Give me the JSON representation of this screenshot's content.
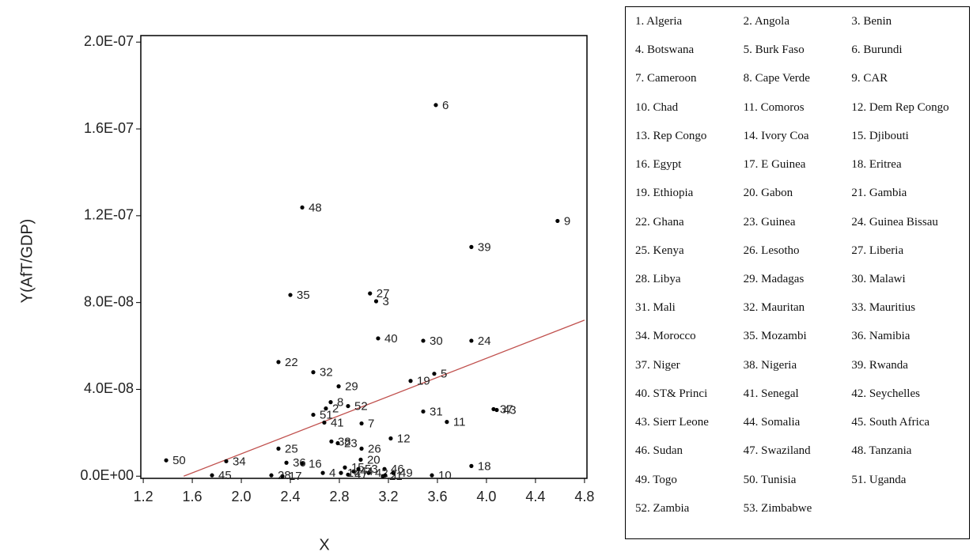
{
  "chart_data": {
    "type": "scatter",
    "title": null,
    "x_label": "X",
    "y_label": "Y(AfT/GDP)",
    "xlim": [
      1.18,
      4.82
    ],
    "ylim": [
      -1e-09,
      2.03e-07
    ],
    "xticks": [
      1.2,
      1.6,
      {
        "value": 2,
        "label": "2.0"
      },
      2.4,
      2.8,
      3.2,
      3.6,
      {
        "value": 4,
        "label": "4.0"
      },
      4.4,
      4.8
    ],
    "yticks": [
      {
        "value": 0,
        "label": "0.0E+00"
      },
      {
        "value": 4e-08,
        "label": "4.0E-08"
      },
      {
        "value": 8e-08,
        "label": "8.0E-08"
      },
      {
        "value": 1.2e-07,
        "label": "1.2E-07"
      },
      {
        "value": 1.6e-07,
        "label": "1.6E-07"
      },
      {
        "value": 2e-07,
        "label": "2.0E-07"
      }
    ],
    "color": "#000000",
    "point_labels": [
      "6",
      "48",
      "9",
      "39",
      "35",
      "27",
      "3",
      "40",
      "30",
      "24",
      "22",
      "32",
      "5",
      "19",
      "29",
      "8",
      "2",
      "52",
      "37",
      "43",
      "31",
      "51",
      "41",
      "7",
      "11",
      "12",
      "38",
      "23",
      "26",
      "25",
      "20",
      "36",
      "16",
      "34",
      "50",
      "18",
      "45",
      "10",
      "17",
      "28",
      "4",
      "46",
      "21",
      "44",
      "14",
      "42",
      "49",
      "47",
      "15",
      "53",
      "1"
    ],
    "x": [
      3.587,
      2.497,
      4.58,
      3.877,
      2.4,
      3.05,
      3.1,
      3.116,
      3.484,
      3.877,
      2.303,
      2.587,
      3.574,
      3.381,
      2.794,
      2.729,
      2.69,
      2.871,
      4.058,
      4.084,
      3.484,
      2.587,
      2.677,
      2.981,
      3.677,
      3.219,
      2.735,
      2.787,
      2.981,
      2.303,
      2.974,
      2.368,
      2.497,
      1.877,
      1.387,
      3.877,
      1.761,
      3.555,
      2.335,
      2.245,
      2.665,
      3.168,
      3.155,
      2.916,
      2.813,
      3.039,
      3.239,
      2.871,
      2.845,
      2.955,
      3.174
    ],
    "y": [
      1.71e-07,
      1.238e-07,
      1.176e-07,
      1.056e-07,
      8.35e-08,
      8.42e-08,
      8.06e-08,
      6.35e-08,
      6.24e-08,
      6.24e-08,
      5.26e-08,
      4.79e-08,
      4.72e-08,
      4.39e-08,
      4.14e-08,
      3.41e-08,
      3.12e-08,
      3.23e-08,
      3.09e-08,
      3.05e-08,
      2.98e-08,
      2.83e-08,
      2.47e-08,
      2.43e-08,
      2.5e-08,
      1.74e-08,
      1.6e-08,
      1.52e-08,
      1.27e-08,
      1.27e-08,
      7.6e-09,
      6.2e-09,
      5.8e-09,
      6.9e-09,
      7.3e-09,
      4.7e-09,
      4e-10,
      4e-10,
      0,
      4e-10,
      1.5e-09,
      3.3e-09,
      0,
      2.2e-09,
      1.5e-09,
      1.5e-09,
      1.5e-09,
      7e-10,
      4e-09,
      3.3e-09,
      4e-10
    ],
    "trend_line": {
      "color": "#c0504d",
      "x": [
        1.53,
        4.8
      ],
      "y": [
        0,
        7.19e-08
      ]
    }
  },
  "legend_table": {
    "rows": [
      [
        "1. Algeria",
        "2. Angola",
        "3. Benin"
      ],
      [
        "4. Botswana",
        "5. Burk Faso",
        "6. Burundi"
      ],
      [
        "7. Cameroon",
        "8. Cape Verde",
        "9. CAR"
      ],
      [
        "10. Chad",
        "11. Comoros",
        "12. Dem Rep Congo"
      ],
      [
        "13. Rep Congo",
        "14. Ivory Coa",
        "15. Djibouti"
      ],
      [
        "16. Egypt",
        "17. E Guinea",
        "18. Eritrea"
      ],
      [
        "19. Ethiopia",
        "20. Gabon",
        "21. Gambia"
      ],
      [
        "22. Ghana",
        "23. Guinea",
        "24. Guinea Bissau"
      ],
      [
        "25. Kenya",
        "26. Lesotho",
        "27. Liberia"
      ],
      [
        "28. Libya",
        "29. Madagas",
        "30. Malawi"
      ],
      [
        "31. Mali",
        "32. Mauritan",
        "33. Mauritius"
      ],
      [
        "34. Morocco",
        "35. Mozambi",
        "36. Namibia"
      ],
      [
        "37. Niger",
        "38. Nigeria",
        "39. Rwanda"
      ],
      [
        "40. ST& Princi",
        "41. Senegal",
        "42. Seychelles"
      ],
      [
        "43. Sierr Leone",
        "44. Somalia",
        "45. South Africa"
      ],
      [
        "46. Sudan",
        "47. Swaziland",
        "48. Tanzania"
      ],
      [
        "49. Togo",
        "50. Tunisia",
        "51. Uganda"
      ],
      [
        "52. Zambia",
        "53. Zimbabwe"
      ]
    ]
  }
}
